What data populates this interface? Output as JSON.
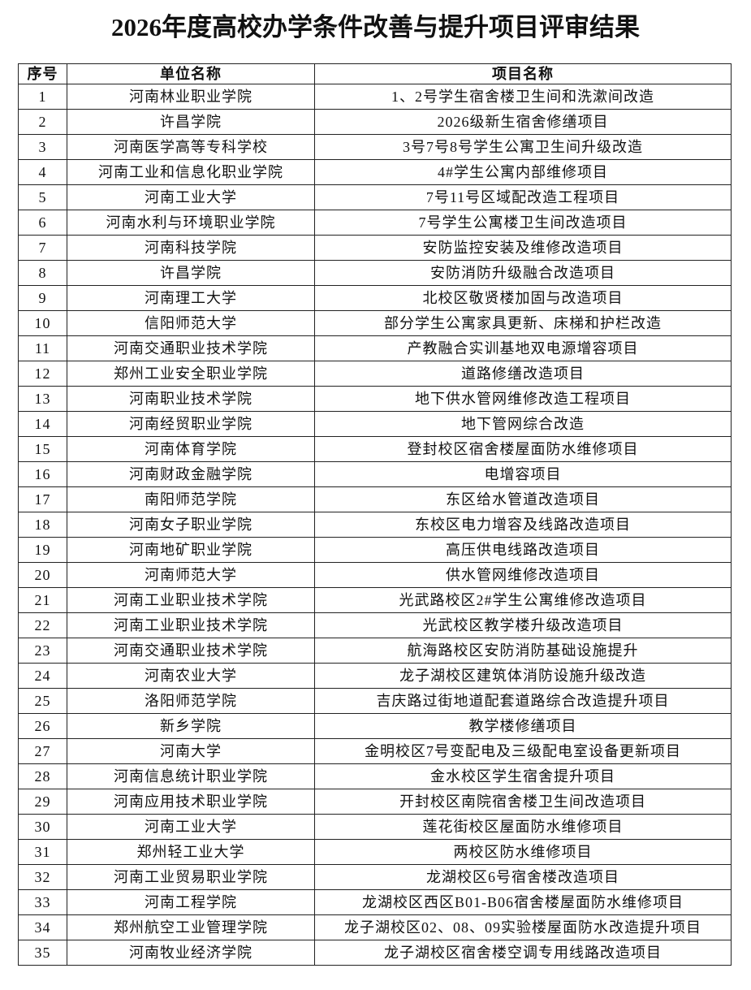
{
  "title": "2026年度高校办学条件改善与提升项目评审结果",
  "columns": [
    "序号",
    "单位名称",
    "项目名称"
  ],
  "rows": [
    [
      "1",
      "河南林业职业学院",
      "1、2号学生宿舍楼卫生间和洗漱间改造"
    ],
    [
      "2",
      "许昌学院",
      "2026级新生宿舍修缮项目"
    ],
    [
      "3",
      "河南医学高等专科学校",
      "3号7号8号学生公寓卫生间升级改造"
    ],
    [
      "4",
      "河南工业和信息化职业学院",
      "4#学生公寓内部维修项目"
    ],
    [
      "5",
      "河南工业大学",
      "7号11号区域配改造工程项目"
    ],
    [
      "6",
      "河南水利与环境职业学院",
      "7号学生公寓楼卫生间改造项目"
    ],
    [
      "7",
      "河南科技学院",
      "安防监控安装及维修改造项目"
    ],
    [
      "8",
      "许昌学院",
      "安防消防升级融合改造项目"
    ],
    [
      "9",
      "河南理工大学",
      "北校区敬贤楼加固与改造项目"
    ],
    [
      "10",
      "信阳师范大学",
      "部分学生公寓家具更新、床梯和护栏改造"
    ],
    [
      "11",
      "河南交通职业技术学院",
      "产教融合实训基地双电源增容项目"
    ],
    [
      "12",
      "郑州工业安全职业学院",
      "道路修缮改造项目"
    ],
    [
      "13",
      "河南职业技术学院",
      "地下供水管网维修改造工程项目"
    ],
    [
      "14",
      "河南经贸职业学院",
      "地下管网综合改造"
    ],
    [
      "15",
      "河南体育学院",
      "登封校区宿舍楼屋面防水维修项目"
    ],
    [
      "16",
      "河南财政金融学院",
      "电增容项目"
    ],
    [
      "17",
      "南阳师范学院",
      "东区给水管道改造项目"
    ],
    [
      "18",
      "河南女子职业学院",
      "东校区电力增容及线路改造项目"
    ],
    [
      "19",
      "河南地矿职业学院",
      "高压供电线路改造项目"
    ],
    [
      "20",
      "河南师范大学",
      "供水管网维修改造项目"
    ],
    [
      "21",
      "河南工业职业技术学院",
      "光武路校区2#学生公寓维修改造项目"
    ],
    [
      "22",
      "河南工业职业技术学院",
      "光武校区教学楼升级改造项目"
    ],
    [
      "23",
      "河南交通职业技术学院",
      "航海路校区安防消防基础设施提升"
    ],
    [
      "24",
      "河南农业大学",
      "龙子湖校区建筑体消防设施升级改造"
    ],
    [
      "25",
      "洛阳师范学院",
      "吉庆路过街地道配套道路综合改造提升项目"
    ],
    [
      "26",
      "新乡学院",
      "教学楼修缮项目"
    ],
    [
      "27",
      "河南大学",
      "金明校区7号变配电及三级配电室设备更新项目"
    ],
    [
      "28",
      "河南信息统计职业学院",
      "金水校区学生宿舍提升项目"
    ],
    [
      "29",
      "河南应用技术职业学院",
      "开封校区南院宿舍楼卫生间改造项目"
    ],
    [
      "30",
      "河南工业大学",
      "莲花街校区屋面防水维修项目"
    ],
    [
      "31",
      "郑州轻工业大学",
      "两校区防水维修项目"
    ],
    [
      "32",
      "河南工业贸易职业学院",
      "龙湖校区6号宿舍楼改造项目"
    ],
    [
      "33",
      "河南工程学院",
      "龙湖校区西区B01-B06宿舍楼屋面防水维修项目"
    ],
    [
      "34",
      "郑州航空工业管理学院",
      "龙子湖校区02、08、09实验楼屋面防水改造提升项目"
    ],
    [
      "35",
      "河南牧业经济学院",
      "龙子湖校区宿舍楼空调专用线路改造项目"
    ]
  ]
}
